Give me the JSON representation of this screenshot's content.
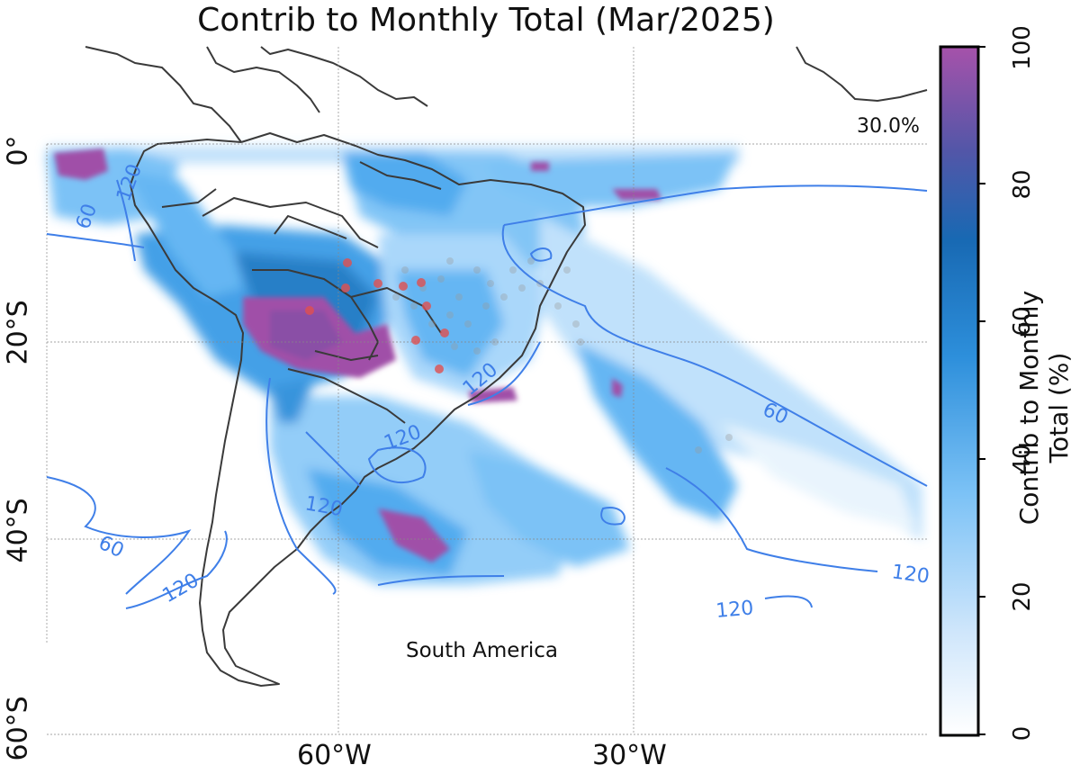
{
  "title": "Contrib to Monthly Total (Mar/2025)",
  "region_label": "South America",
  "threshold_label": "30.0%",
  "lat_labels": [
    "0°",
    "20°S",
    "40°S",
    "60°S"
  ],
  "lon_labels": [
    "60°W",
    "30°W"
  ],
  "contour_labels": [
    "60",
    "60",
    "60",
    "120",
    "120",
    "120",
    "120",
    "120",
    "120",
    "120"
  ],
  "colorbar": {
    "label": "Contrib to Monthly Total (%)",
    "ticks": [
      "0",
      "20",
      "40",
      "60",
      "80",
      "100"
    ],
    "colors": [
      "#ffffff",
      "#e8f4fd",
      "#d3eafc",
      "#bde0fb",
      "#a6d5fa",
      "#8ecbf8",
      "#74bff6",
      "#5db3f3",
      "#4aa7ef",
      "#3b9be6",
      "#2f8fdb",
      "#2684d0",
      "#1f79c5",
      "#1a6fb9",
      "#2a67b3",
      "#3c60ae",
      "#4f5aa9",
      "#6155a8",
      "#7452a8",
      "#8850a9",
      "#9b50aa",
      "#a352aa"
    ]
  },
  "colors": {
    "coast": "#3a3a3a",
    "contour": "#3f7fe8",
    "hotspot": "#a050a8",
    "red_dots": "#e05050"
  }
}
